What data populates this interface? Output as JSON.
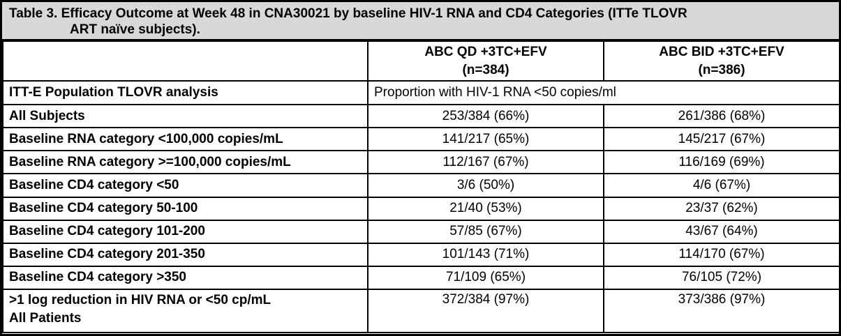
{
  "title": {
    "text": "Table 3. Efficacy Outcome at Week 48 in CNA30021 by baseline HIV-1 RNA and CD4 Categories (ITTe TLOVR\nART naïve subjects)."
  },
  "header": {
    "empty": "",
    "qd": "ABC QD +3TC+EFV\n(n=384)",
    "bid": "ABC BID +3TC+EFV\n(n=386)"
  },
  "analysis": {
    "label": "ITT-E Population TLOVR analysis",
    "value": "Proportion with HIV-1 RNA <50 copies/ml"
  },
  "rows": [
    {
      "label": "All Subjects",
      "qd": "253/384 (66%)",
      "bid": "261/386 (68%)"
    },
    {
      "label": "Baseline RNA category <100,000 copies/mL",
      "qd": "141/217 (65%)",
      "bid": "145/217 (67%)"
    },
    {
      "label": "Baseline RNA category >=100,000 copies/mL",
      "qd": "112/167 (67%)",
      "bid": "116/169 (69%)"
    },
    {
      "label": "Baseline CD4 category <50",
      "qd": "3/6 (50%)",
      "bid": "4/6 (67%)"
    },
    {
      "label": "Baseline CD4 category 50-100",
      "qd": "21/40 (53%)",
      "bid": "23/37 (62%)"
    },
    {
      "label": "Baseline CD4 category 101-200",
      "qd": "57/85 (67%)",
      "bid": "43/67 (64%)"
    },
    {
      "label": "Baseline CD4 category 201-350",
      "qd": "101/143 (71%)",
      "bid": "114/170 (67%)"
    },
    {
      "label": "Baseline CD4 category >350",
      "qd": "71/109 (65%)",
      "bid": "76/105 (72%)"
    },
    {
      "label": ">1 log reduction in HIV RNA or <50 cp/mL\nAll Patients",
      "qd": "372/384 (97%)",
      "bid": "373/386 (97%)"
    }
  ],
  "colors": {
    "title_background": "#d8d8d8",
    "border": "#000000",
    "cell_background": "#ffffff",
    "text": "#000000"
  }
}
